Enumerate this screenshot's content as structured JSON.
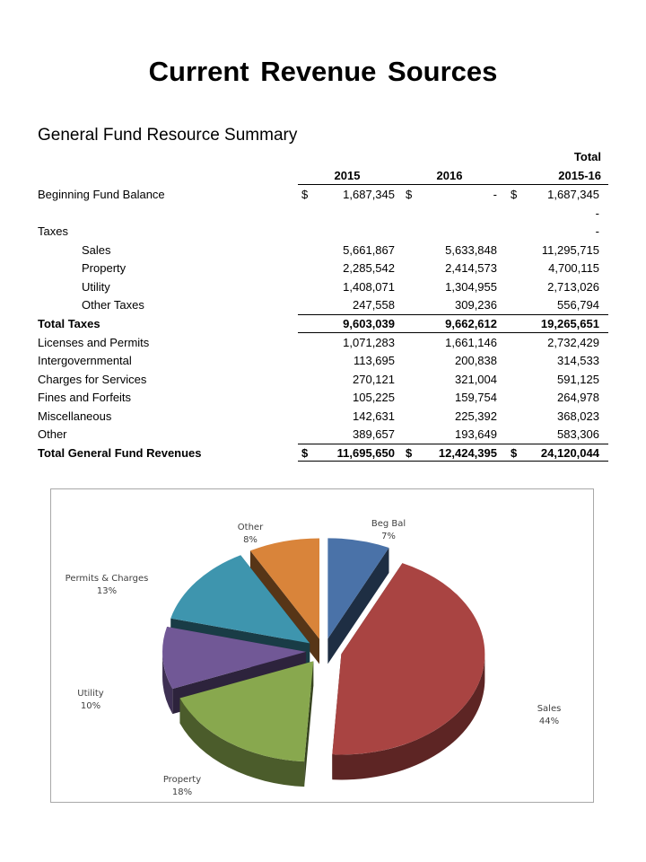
{
  "page": {
    "title": "Current Revenue Sources"
  },
  "table": {
    "title": "General Fund Resource Summary",
    "header": {
      "total_label": "Total",
      "col_2015": "2015",
      "col_2016": "2016",
      "col_total": "2015-16"
    },
    "rows": [
      {
        "label": "Beginning Fund Balance",
        "v2015": "1,687,345",
        "v2016": "-",
        "total": "1,687,345",
        "dollar": true,
        "indent": false,
        "bold": false
      },
      {
        "label": "",
        "v2015": "",
        "v2016": "",
        "total": "-",
        "dollar": false,
        "indent": false,
        "bold": false
      },
      {
        "label": "Taxes",
        "v2015": "",
        "v2016": "",
        "total": "-",
        "dollar": false,
        "indent": false,
        "bold": false
      },
      {
        "label": "Sales",
        "v2015": "5,661,867",
        "v2016": "5,633,848",
        "total": "11,295,715",
        "dollar": false,
        "indent": true,
        "bold": false
      },
      {
        "label": "Property",
        "v2015": "2,285,542",
        "v2016": "2,414,573",
        "total": "4,700,115",
        "dollar": false,
        "indent": true,
        "bold": false
      },
      {
        "label": "Utility",
        "v2015": "1,408,071",
        "v2016": "1,304,955",
        "total": "2,713,026",
        "dollar": false,
        "indent": true,
        "bold": false
      },
      {
        "label": "Other Taxes",
        "v2015": "247,558",
        "v2016": "309,236",
        "total": "556,794",
        "dollar": false,
        "indent": true,
        "bold": false
      },
      {
        "label": "Total Taxes",
        "v2015": "9,603,039",
        "v2016": "9,662,612",
        "total": "19,265,651",
        "dollar": false,
        "indent": false,
        "bold": true
      },
      {
        "label": "Licenses and Permits",
        "v2015": "1,071,283",
        "v2016": "1,661,146",
        "total": "2,732,429",
        "dollar": false,
        "indent": false,
        "bold": false
      },
      {
        "label": "Intergovernmental",
        "v2015": "113,695",
        "v2016": "200,838",
        "total": "314,533",
        "dollar": false,
        "indent": false,
        "bold": false
      },
      {
        "label": "Charges for Services",
        "v2015": "270,121",
        "v2016": "321,004",
        "total": "591,125",
        "dollar": false,
        "indent": false,
        "bold": false
      },
      {
        "label": "Fines and Forfeits",
        "v2015": "105,225",
        "v2016": "159,754",
        "total": "264,978",
        "dollar": false,
        "indent": false,
        "bold": false
      },
      {
        "label": "Miscellaneous",
        "v2015": "142,631",
        "v2016": "225,392",
        "total": "368,023",
        "dollar": false,
        "indent": false,
        "bold": false
      },
      {
        "label": "Other",
        "v2015": "389,657",
        "v2016": "193,649",
        "total": "583,306",
        "dollar": false,
        "indent": false,
        "bold": false
      },
      {
        "label": "Total General Fund Revenues",
        "v2015": "11,695,650",
        "v2016": "12,424,395",
        "total": "24,120,044",
        "dollar": true,
        "indent": false,
        "bold": true
      }
    ],
    "dollar_sign": "$"
  },
  "chart_data": {
    "type": "pie",
    "title": "",
    "three_d": true,
    "exploded": true,
    "legend": "none",
    "slices": [
      {
        "name": "Beg Bal",
        "label": "7%",
        "value": 7,
        "color": "#4A72A8"
      },
      {
        "name": "Sales",
        "label": "44%",
        "value": 44,
        "color": "#A94442"
      },
      {
        "name": "Property",
        "label": "18%",
        "value": 18,
        "color": "#88A84E"
      },
      {
        "name": "Utility",
        "label": "10%",
        "value": 10,
        "color": "#715896"
      },
      {
        "name": "Permits & Charges",
        "label": "13%",
        "value": 13,
        "color": "#3E95AE"
      },
      {
        "name": "Other",
        "label": "8%",
        "value": 8,
        "color": "#D9843A"
      }
    ]
  }
}
